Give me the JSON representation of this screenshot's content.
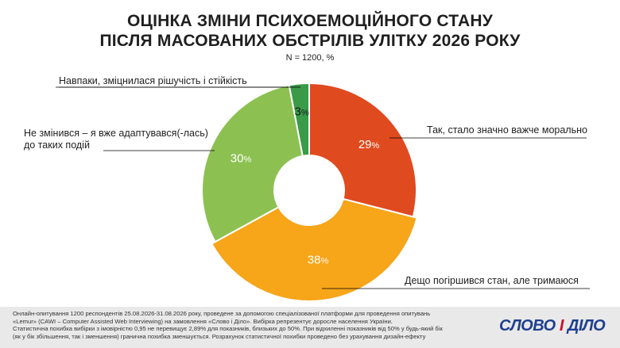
{
  "title_line1": "ОЦІНКА ЗМІНИ ПСИХОЕМОЦІЙНОГО СТАНУ",
  "title_line2": "ПІСЛЯ МАСОВАНИХ ОБСТРІЛІВ УЛІТКУ 2026 РОКУ",
  "subtitle": "N = 1200, %",
  "chart_data": {
    "type": "pie",
    "donut": true,
    "title": "ОЦІНКА ЗМІНИ ПСИХОЕМОЦІЙНОГО СТАНУ ПІСЛЯ МАСОВАНИХ ОБСТРІЛІВ УЛІТКУ 2026 РОКУ",
    "subtitle": "N = 1200, %",
    "slices": [
      {
        "label": "Так, стало значно важче морально",
        "value": 29,
        "color": "#e04a1f"
      },
      {
        "label": "Дещо погіршився стан, але тримаюся",
        "value": 38,
        "color": "#f7a519"
      },
      {
        "label": "Не змінився – я вже адаптувався(-лась) до таких подій",
        "value": 30,
        "color": "#8cc152"
      },
      {
        "label": "Навпаки, зміцнилася рішучість і стійкість",
        "value": 3,
        "color": "#3a9a48"
      }
    ],
    "value_suffix": "%"
  },
  "labels": {
    "so_harder": "Так, стало значно важче морально",
    "somewhat_worse": "Дещо погіршився стан, але тримаюся",
    "not_changed_1": "Не змінився – я вже адаптувався(-лась)",
    "not_changed_2": "до таких подій",
    "stronger": "Навпаки, зміцнилася рішучість і стійкість"
  },
  "footer": {
    "line1": "Онлайн-опитування 1200 респондентів 25.08.2026-31.08.2026 року, проведене за допомогою спеціалізованої платформи для проведення опитувань",
    "line2": "«Lemur» (CAWI – Computer Assisted Web Interviewing) на замовлення «Слово і Діло». Вибірка репрезентує доросле населення України.",
    "line3": "Статистична похибка вибірки з імовірністю 0,95 не перевищує 2,89% для показників, близьких до 50%. При відхиленні показників від 50% у будь-який бік",
    "line4": "(як у бік збільшення, так і зменшення) гранична похибка зменшується. Розрахунок статистичної похибки проведено без урахування дизайн-ефекту"
  },
  "logo": {
    "part1": "СЛОВО ",
    "part2": "І",
    "part3": " ДІЛО"
  }
}
